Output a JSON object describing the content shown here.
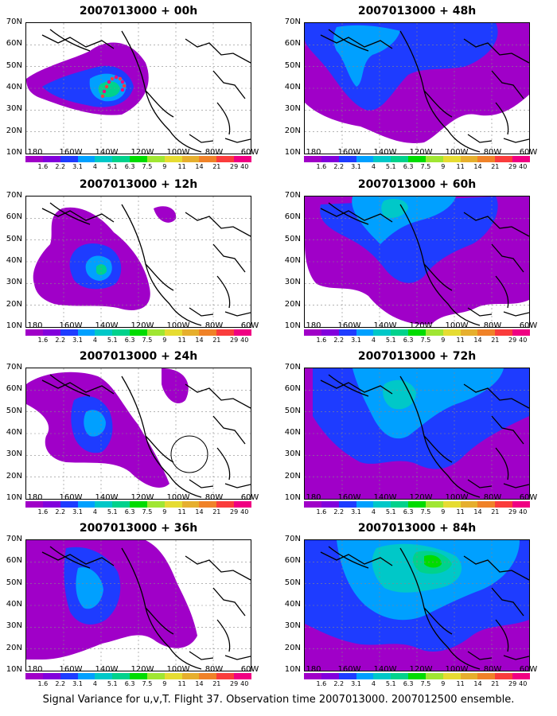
{
  "palette": [
    "#a000c8",
    "#8200dc",
    "#1e3cff",
    "#00a0ff",
    "#00c8c8",
    "#00d28c",
    "#00dc00",
    "#a0e632",
    "#e6dc32",
    "#e6af2d",
    "#f08228",
    "#fa3c3c",
    "#f00082"
  ],
  "colorbar_labels": [
    "1.6",
    "2.2",
    "3.1",
    "4",
    "5.1",
    "6.3",
    "7.5",
    "9",
    "11",
    "14",
    "21",
    "29",
    "40"
  ],
  "lat_labels": [
    "70N",
    "60N",
    "50N",
    "40N",
    "30N",
    "20N",
    "10N"
  ],
  "lon_labels": [
    "180",
    "160W",
    "140W",
    "120W",
    "100W",
    "80W",
    "60W"
  ],
  "panels": [
    {
      "title": "2007013000 + 00h",
      "intensity": 0
    },
    {
      "title": "2007013000 + 12h",
      "intensity": 1
    },
    {
      "title": "2007013000 + 24h",
      "intensity": 2
    },
    {
      "title": "2007013000 + 36h",
      "intensity": 3
    },
    {
      "title": "2007013000 + 48h",
      "intensity": 4
    },
    {
      "title": "2007013000 + 60h",
      "intensity": 5
    },
    {
      "title": "2007013000 + 72h",
      "intensity": 6
    },
    {
      "title": "2007013000 + 84h",
      "intensity": 7
    }
  ],
  "caption": "Signal Variance for u,v,T. Flight 37. Observation time 2007013000. 2007012500 ensemble."
}
